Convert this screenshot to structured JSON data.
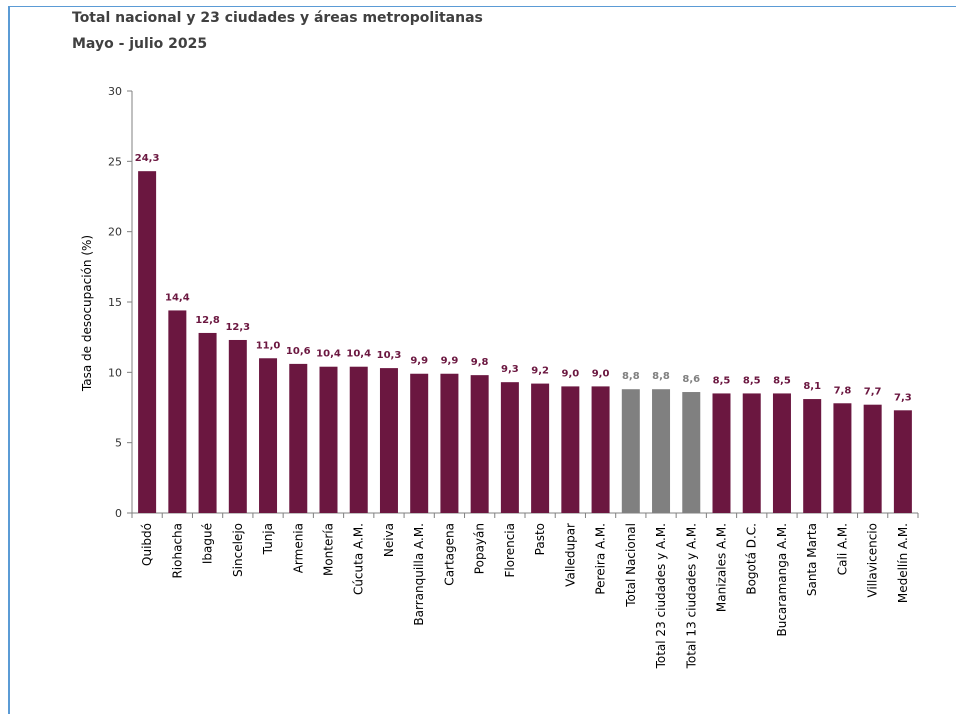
{
  "header": {
    "title": "Total nacional y 23 ciudades y áreas metropolitanas",
    "subtitle": "Mayo - julio 2025"
  },
  "colors": {
    "city": "#6b1740",
    "aggregate": "#808080",
    "axis": "#808080",
    "text": "#333333"
  },
  "chart_data": {
    "type": "bar",
    "title": "Total nacional y 23 ciudades y áreas metropolitanas",
    "subtitle": "Mayo - julio 2025",
    "xlabel": "",
    "ylabel": "Tasa de desocupación (%)",
    "ylim": [
      0,
      30
    ],
    "yticks": [
      0,
      5,
      10,
      15,
      20,
      25,
      30
    ],
    "grid": false,
    "legend": "none",
    "categories": [
      "Quibdó",
      "Riohacha",
      "Ibagué",
      "Sincelejo",
      "Tunja",
      "Armenia",
      "Montería",
      "Cúcuta A.M.",
      "Neiva",
      "Barranquilla A.M.",
      "Cartagena",
      "Popayán",
      "Florencia",
      "Pasto",
      "Valledupar",
      "Pereira A.M.",
      "Total Nacional",
      "Total 23 ciudades y A.M.",
      "Total 13 ciudades y A.M.",
      "Manizales A.M.",
      "Bogotá D.C.",
      "Bucaramanga A.M.",
      "Santa Marta",
      "Cali A.M.",
      "Villavicencio",
      "Medellín A.M."
    ],
    "values": [
      24.3,
      14.4,
      12.8,
      12.3,
      11.0,
      10.6,
      10.4,
      10.4,
      10.3,
      9.9,
      9.9,
      9.8,
      9.3,
      9.2,
      9.0,
      9.0,
      8.8,
      8.8,
      8.6,
      8.5,
      8.5,
      8.5,
      8.1,
      7.8,
      7.7,
      7.3
    ],
    "labels": [
      "24,3",
      "14,4",
      "12,8",
      "12,3",
      "11,0",
      "10,6",
      "10,4",
      "10,4",
      "10,3",
      "9,9",
      "9,9",
      "9,8",
      "9,3",
      "9,2",
      "9,0",
      "9,0",
      "8,8",
      "8,8",
      "8,6",
      "8,5",
      "8,5",
      "8,5",
      "8,1",
      "7,8",
      "7,7",
      "7,3"
    ],
    "highlight": [
      "Total Nacional",
      "Total 23 ciudades y A.M.",
      "Total 13 ciudades y A.M."
    ]
  }
}
